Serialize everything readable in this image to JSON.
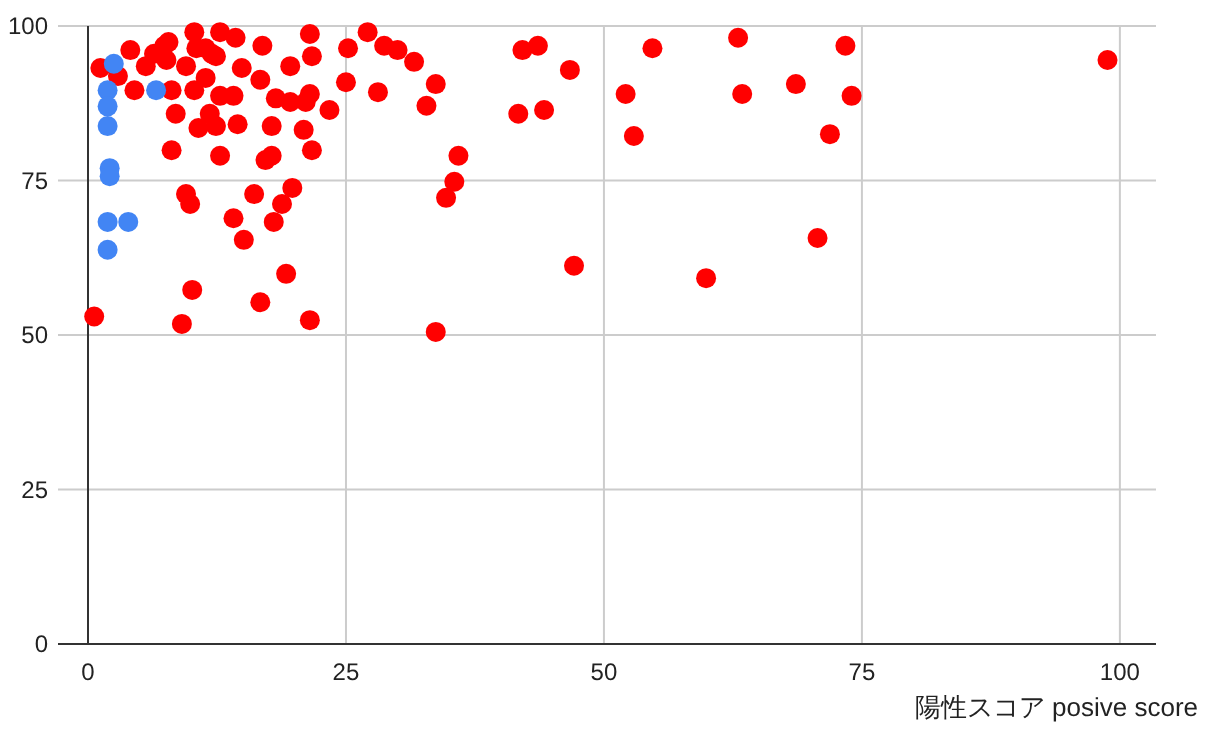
{
  "chart_data": {
    "type": "scatter",
    "xlabel": "陽性スコア posive score",
    "xlim": [
      0,
      103.5
    ],
    "ylim": [
      0,
      100
    ],
    "xticks": [
      0,
      25,
      50,
      75,
      100
    ],
    "yticks": [
      0,
      25,
      50,
      75,
      100
    ],
    "grid": true,
    "marker": "circle",
    "series": [
      {
        "color": "#ff0000",
        "x": [
          0.6,
          1.2,
          2.9,
          4.1,
          4.5,
          5.6,
          6.4,
          7.4,
          7.8,
          7.6,
          8.1,
          8.1,
          8.5,
          9.5,
          9.9,
          10.1,
          9.1,
          9.5,
          10.3,
          10.3,
          10.5,
          10.7,
          11.4,
          12,
          12.4,
          11.4,
          11.8,
          12.4,
          12.8,
          12.8,
          12.8,
          14.1,
          15.1,
          16.1,
          16.7,
          14.5,
          14.1,
          14.3,
          14.9,
          16.7,
          16.9,
          17.8,
          17.2,
          17.8,
          18.2,
          19.6,
          18.8,
          18,
          19.8,
          19.2,
          19.6,
          20.9,
          21.1,
          21.5,
          21.7,
          21.7,
          21.5,
          21.5,
          23.4,
          25.2,
          25,
          27.1,
          28.1,
          28.7,
          30,
          31.6,
          32.8,
          33.7,
          33.7,
          35.9,
          35.5,
          34.7,
          42.1,
          43.6,
          46.7,
          41.7,
          44.2,
          47.1,
          54.7,
          52.1,
          52.9,
          63,
          63.4,
          59.9,
          68.6,
          73.4,
          74,
          71.9,
          70.7,
          98.8
        ],
        "values": [
          53,
          93.2,
          91.9,
          96.1,
          89.6,
          93.5,
          95.5,
          96.8,
          97.4,
          94.5,
          79.9,
          89.6,
          85.8,
          72.8,
          71.2,
          57.3,
          51.8,
          93.5,
          99,
          89.6,
          96.4,
          83.5,
          96.4,
          95.5,
          95.1,
          91.6,
          85.8,
          83.8,
          99,
          88.7,
          79,
          68.9,
          65.4,
          72.8,
          55.3,
          84.1,
          88.7,
          98.1,
          93.2,
          91.3,
          96.8,
          83.8,
          78.3,
          79,
          88.3,
          87.7,
          71.2,
          68.3,
          73.8,
          59.9,
          93.5,
          83.2,
          87.7,
          89,
          79.9,
          95.1,
          98.7,
          52.4,
          86.4,
          96.4,
          90.9,
          99,
          89.3,
          96.8,
          96.1,
          94.2,
          87.1,
          90.6,
          50.5,
          79,
          74.8,
          72.2,
          96.1,
          96.8,
          92.9,
          85.8,
          86.4,
          61.2,
          96.4,
          89,
          82.2,
          98.1,
          89,
          59.2,
          90.6,
          96.8,
          88.7,
          82.5,
          65.7,
          94.5
        ]
      },
      {
        "color": "#4285f4",
        "x": [
          2.5,
          1.9,
          1.9,
          1.9,
          2.1,
          2.1,
          1.9,
          3.9,
          1.9,
          6.6
        ],
        "values": [
          93.9,
          89.6,
          87,
          83.8,
          77,
          75.7,
          68.3,
          68.3,
          63.8,
          89.6
        ]
      }
    ]
  }
}
